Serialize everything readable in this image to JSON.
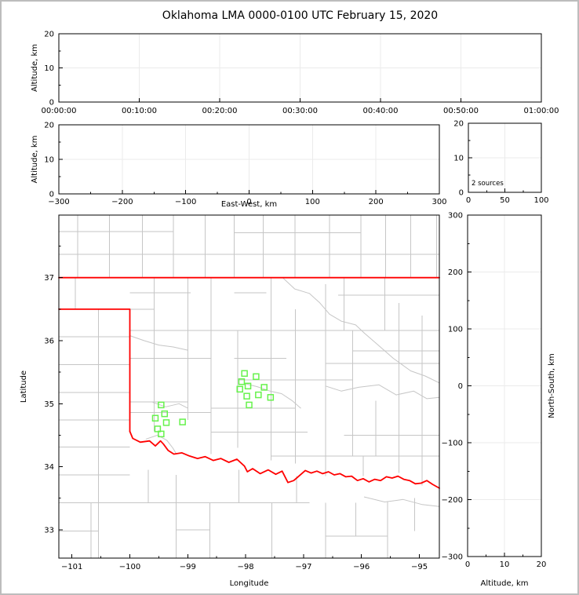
{
  "title": {
    "text": "Oklahoma LMA 0000-0100 UTC February 15, 2020"
  },
  "colors": {
    "axis": "#000000",
    "grid": "#ebebeb",
    "county": "#c6c6c6",
    "state_border": "#ff0000",
    "station": "#66f24c",
    "text": "#000000",
    "frame": "#bdbdbd",
    "background": "#ffffff"
  },
  "chart_data": [
    {
      "id": "time_height",
      "type": "scatter",
      "description": "Altitude vs time panel (no sources plotted)",
      "xlabel": "",
      "ylabel": "Altitude, km",
      "xlim": [
        0,
        3600
      ],
      "ylim": [
        0,
        20
      ],
      "xticks": {
        "values": [
          0,
          600,
          1200,
          1800,
          2400,
          3000,
          3600
        ],
        "labels": [
          "00:00:00",
          "00:10:00",
          "00:20:00",
          "00:30:00",
          "00:40:00",
          "00:50:00",
          "01:00:00"
        ],
        "minor_step": 0
      },
      "yticks": {
        "values": [
          0,
          10,
          20
        ],
        "labels": [
          "0",
          "10",
          "20"
        ],
        "minor_step": 5
      },
      "grid": true,
      "points": []
    },
    {
      "id": "ew_height",
      "type": "scatter",
      "description": "Altitude vs east-west distance panel (no sources plotted)",
      "xlabel": "East-West, km",
      "ylabel": "Altitude, km",
      "xlim": [
        -300,
        300
      ],
      "ylim": [
        0,
        20
      ],
      "xticks": {
        "values": [
          -300,
          -200,
          -100,
          0,
          100,
          200,
          300
        ],
        "labels": [
          "−300",
          "−200",
          "−100",
          "0",
          "100",
          "200",
          "300"
        ],
        "minor_step": 50
      },
      "yticks": {
        "values": [
          0,
          10,
          20
        ],
        "labels": [
          "0",
          "10",
          "20"
        ],
        "minor_step": 5
      },
      "grid": true,
      "points": []
    },
    {
      "id": "source_histogram",
      "type": "scatter",
      "description": "Altitude histogram panel",
      "xlabel": "",
      "ylabel": "",
      "annotation": "2 sources",
      "xlim": [
        0,
        100
      ],
      "ylim": [
        0,
        20
      ],
      "xticks": {
        "values": [
          0,
          50,
          100
        ],
        "labels": [
          "0",
          "50",
          "100"
        ],
        "minor_step": 25
      },
      "yticks": {
        "values": [
          0,
          10,
          20
        ],
        "labels": [
          "0",
          "10",
          "20"
        ],
        "minor_step": 5
      },
      "grid": true,
      "points": []
    },
    {
      "id": "map",
      "type": "scatter",
      "description": "Plan view map: county lines gray, state borders red, LMA stations as green squares",
      "xlabel": "Longitude",
      "ylabel": "Latitude",
      "xlim": [
        -101.226,
        -94.655
      ],
      "ylim": [
        32.55,
        37.993
      ],
      "xticks": {
        "values": [
          -101,
          -100,
          -99,
          -98,
          -97,
          -96,
          -95
        ],
        "labels": [
          "−101",
          "−100",
          "−99",
          "−98",
          "−97",
          "−96",
          "−95"
        ],
        "minor_step": 0.5
      },
      "yticks": {
        "values": [
          33,
          34,
          35,
          36,
          37
        ],
        "labels": [
          "33",
          "34",
          "35",
          "36",
          "37"
        ],
        "minor_step": 0.5
      },
      "grid": false,
      "stations": [
        [
          -99.46,
          34.98
        ],
        [
          -99.4,
          34.84
        ],
        [
          -99.56,
          34.77
        ],
        [
          -99.37,
          34.7
        ],
        [
          -99.09,
          34.71
        ],
        [
          -99.52,
          34.6
        ],
        [
          -99.46,
          34.52
        ],
        [
          -98.02,
          35.48
        ],
        [
          -97.82,
          35.43
        ],
        [
          -98.07,
          35.35
        ],
        [
          -97.96,
          35.28
        ],
        [
          -97.68,
          35.26
        ],
        [
          -98.1,
          35.23
        ],
        [
          -97.78,
          35.14
        ],
        [
          -97.98,
          35.12
        ],
        [
          -97.57,
          35.1
        ],
        [
          -97.94,
          34.98
        ]
      ],
      "state_border": {
        "kansas_line": [
          [
            -101.226,
            37
          ],
          [
            -94.655,
            37
          ]
        ],
        "panhandle": [
          [
            -101.226,
            36.5
          ],
          [
            -100.0,
            36.5
          ],
          [
            -100.0,
            34.56
          ]
        ],
        "red_river": [
          [
            -100.0,
            34.56
          ],
          [
            -99.95,
            34.45
          ],
          [
            -99.82,
            34.39
          ],
          [
            -99.66,
            34.41
          ],
          [
            -99.56,
            34.33
          ],
          [
            -99.47,
            34.41
          ],
          [
            -99.42,
            34.36
          ],
          [
            -99.34,
            34.26
          ],
          [
            -99.24,
            34.2
          ],
          [
            -99.1,
            34.22
          ],
          [
            -98.97,
            34.17
          ],
          [
            -98.83,
            34.13
          ],
          [
            -98.7,
            34.16
          ],
          [
            -98.56,
            34.1
          ],
          [
            -98.43,
            34.13
          ],
          [
            -98.29,
            34.07
          ],
          [
            -98.15,
            34.12
          ],
          [
            -98.02,
            34.01
          ],
          [
            -97.97,
            33.92
          ],
          [
            -97.88,
            33.97
          ],
          [
            -97.75,
            33.89
          ],
          [
            -97.61,
            33.95
          ],
          [
            -97.48,
            33.88
          ],
          [
            -97.37,
            33.93
          ],
          [
            -97.27,
            33.75
          ],
          [
            -97.17,
            33.78
          ],
          [
            -97.07,
            33.86
          ],
          [
            -96.97,
            33.94
          ],
          [
            -96.87,
            33.9
          ],
          [
            -96.77,
            33.93
          ],
          [
            -96.67,
            33.89
          ],
          [
            -96.57,
            33.92
          ],
          [
            -96.47,
            33.87
          ],
          [
            -96.37,
            33.89
          ],
          [
            -96.27,
            33.84
          ],
          [
            -96.17,
            33.85
          ],
          [
            -96.07,
            33.78
          ],
          [
            -95.97,
            33.81
          ],
          [
            -95.87,
            33.76
          ],
          [
            -95.77,
            33.8
          ],
          [
            -95.67,
            33.78
          ],
          [
            -95.57,
            33.84
          ],
          [
            -95.47,
            33.82
          ],
          [
            -95.37,
            33.85
          ],
          [
            -95.27,
            33.8
          ],
          [
            -95.17,
            33.78
          ],
          [
            -95.07,
            33.73
          ],
          [
            -94.97,
            33.74
          ],
          [
            -94.87,
            33.78
          ],
          [
            -94.77,
            33.72
          ],
          [
            -94.655,
            33.66
          ]
        ]
      },
      "counties": {
        "v": [
          [
            -100.9,
            37,
            37.993
          ],
          [
            -100.35,
            37,
            37.993
          ],
          [
            -99.78,
            37,
            37.993
          ],
          [
            -99.25,
            37,
            37.993
          ],
          [
            -98.7,
            37,
            37.993
          ],
          [
            -98.2,
            37,
            37.993
          ],
          [
            -97.7,
            37,
            37.993
          ],
          [
            -97.15,
            37,
            37.993
          ],
          [
            -96.55,
            37,
            37.993
          ],
          [
            -96.01,
            37,
            37.993
          ],
          [
            -95.58,
            37,
            37.993
          ],
          [
            -95.15,
            37,
            37.993
          ],
          [
            -94.7,
            37,
            37.993
          ],
          [
            -100.94,
            36.5,
            37
          ],
          [
            -100.54,
            32.55,
            36.5
          ],
          [
            -99.58,
            34.56,
            37
          ],
          [
            -99.0,
            34.74,
            37
          ],
          [
            -98.6,
            34.2,
            37
          ],
          [
            -98.14,
            34.3,
            36.16
          ],
          [
            -97.56,
            34.1,
            37
          ],
          [
            -97.14,
            34.05,
            36.5
          ],
          [
            -96.62,
            33.85,
            36.9
          ],
          [
            -96.3,
            36.16,
            37
          ],
          [
            -96.15,
            34.17,
            36.16
          ],
          [
            -95.97,
            33.85,
            34.17
          ],
          [
            -95.75,
            34.17,
            35.05
          ],
          [
            -95.6,
            36.16,
            37
          ],
          [
            -95.35,
            33.9,
            36.6
          ],
          [
            -94.95,
            33.7,
            36.4
          ],
          [
            -99.68,
            33.43,
            33.95
          ],
          [
            -99.2,
            32.55,
            33.87
          ],
          [
            -98.62,
            32.55,
            33.43
          ],
          [
            -98.12,
            33.43,
            33.95
          ],
          [
            -97.55,
            32.55,
            33.43
          ],
          [
            -97.12,
            33.43,
            33.85
          ],
          [
            -96.62,
            32.55,
            33.43
          ],
          [
            -96.1,
            32.9,
            33.43
          ],
          [
            -95.55,
            32.55,
            33.45
          ],
          [
            -95.08,
            32.98,
            33.5
          ],
          [
            -100.67,
            32.55,
            33.43
          ]
        ],
        "h": [
          [
            37.37,
            -101.226,
            -94.655
          ],
          [
            37.73,
            -101.226,
            -99.25
          ],
          [
            37.71,
            -98.2,
            -96.01
          ],
          [
            36.06,
            -101.226,
            -100
          ],
          [
            35.62,
            -101.226,
            -100
          ],
          [
            35.18,
            -101.226,
            -100
          ],
          [
            34.74,
            -101.226,
            -100
          ],
          [
            34.31,
            -101.226,
            -100
          ],
          [
            33.87,
            -101.226,
            -100
          ],
          [
            33.43,
            -101.226,
            -96.9
          ],
          [
            32.98,
            -101.226,
            -100.54
          ],
          [
            36.76,
            -100,
            -98.95
          ],
          [
            36.76,
            -98.2,
            -97.64
          ],
          [
            36.72,
            -96.4,
            -94.655
          ],
          [
            36.5,
            -100,
            -99.58
          ],
          [
            36.16,
            -100,
            -94.655
          ],
          [
            35.84,
            -96.15,
            -94.655
          ],
          [
            35.72,
            -100,
            -98.6
          ],
          [
            35.72,
            -98.2,
            -97.3
          ],
          [
            35.64,
            -96.62,
            -94.655
          ],
          [
            35.38,
            -98.14,
            -96.15
          ],
          [
            35.03,
            -100,
            -99.0
          ],
          [
            34.93,
            -98.6,
            -97.14
          ],
          [
            34.86,
            -100,
            -98.6
          ],
          [
            34.55,
            -98.6,
            -96.93
          ],
          [
            34.5,
            -96.3,
            -94.655
          ],
          [
            34.17,
            -97.56,
            -94.655
          ],
          [
            32.9,
            -96.62,
            -95.55
          ],
          [
            33.0,
            -99.2,
            -98.62
          ]
        ],
        "paths": [
          [
            [
              -100,
              36.08
            ],
            [
              -99.75,
              36.0
            ],
            [
              -99.5,
              35.93
            ],
            [
              -99.25,
              35.9
            ],
            [
              -99.0,
              35.85
            ]
          ],
          [
            [
              -97.35,
              36.99
            ],
            [
              -97.15,
              36.82
            ],
            [
              -96.9,
              36.75
            ],
            [
              -96.72,
              36.6
            ],
            [
              -96.55,
              36.42
            ],
            [
              -96.35,
              36.31
            ],
            [
              -96.1,
              36.25
            ],
            [
              -95.95,
              36.12
            ]
          ],
          [
            [
              -95.95,
              36.12
            ],
            [
              -95.7,
              35.92
            ],
            [
              -95.45,
              35.72
            ],
            [
              -95.15,
              35.52
            ],
            [
              -94.9,
              35.44
            ],
            [
              -94.655,
              35.33
            ]
          ],
          [
            [
              -96.62,
              35.28
            ],
            [
              -96.35,
              35.2
            ],
            [
              -96.05,
              35.26
            ],
            [
              -95.7,
              35.3
            ],
            [
              -95.4,
              35.14
            ],
            [
              -95.1,
              35.2
            ],
            [
              -94.87,
              35.08
            ],
            [
              -94.655,
              35.1
            ]
          ],
          [
            [
              -99.6,
              35.02
            ],
            [
              -99.38,
              34.95
            ],
            [
              -99.15,
              35.0
            ],
            [
              -99.0,
              34.93
            ]
          ],
          [
            [
              -95.95,
              33.52
            ],
            [
              -95.6,
              33.44
            ],
            [
              -95.28,
              33.48
            ],
            [
              -94.95,
              33.4
            ],
            [
              -94.655,
              33.37
            ]
          ],
          [
            [
              -98.02,
              35.32
            ],
            [
              -97.8,
              35.27
            ],
            [
              -97.58,
              35.2
            ],
            [
              -97.38,
              35.16
            ],
            [
              -97.2,
              35.05
            ],
            [
              -97.05,
              34.93
            ]
          ],
          [
            [
              -99.72,
              34.44
            ],
            [
              -99.52,
              34.5
            ],
            [
              -99.36,
              34.42
            ],
            [
              -99.26,
              34.3
            ],
            [
              -99.2,
              34.21
            ]
          ]
        ]
      }
    },
    {
      "id": "ns_height",
      "type": "scatter",
      "description": "North-south distance vs altitude panel (no sources plotted)",
      "xlabel": "Altitude, km",
      "ylabel": "North-South, km",
      "ylabel_side": "right",
      "xlim": [
        0,
        20
      ],
      "ylim": [
        -300,
        300
      ],
      "xticks": {
        "values": [
          0,
          10,
          20
        ],
        "labels": [
          "0",
          "10",
          "20"
        ],
        "minor_step": 5
      },
      "yticks": {
        "values": [
          300,
          200,
          100,
          0,
          -100,
          -200,
          -300
        ],
        "labels": [
          "300",
          "200",
          "100",
          "0",
          "−100",
          "−200",
          "−300"
        ],
        "minor_step": 50
      },
      "grid": true,
      "points": []
    }
  ]
}
